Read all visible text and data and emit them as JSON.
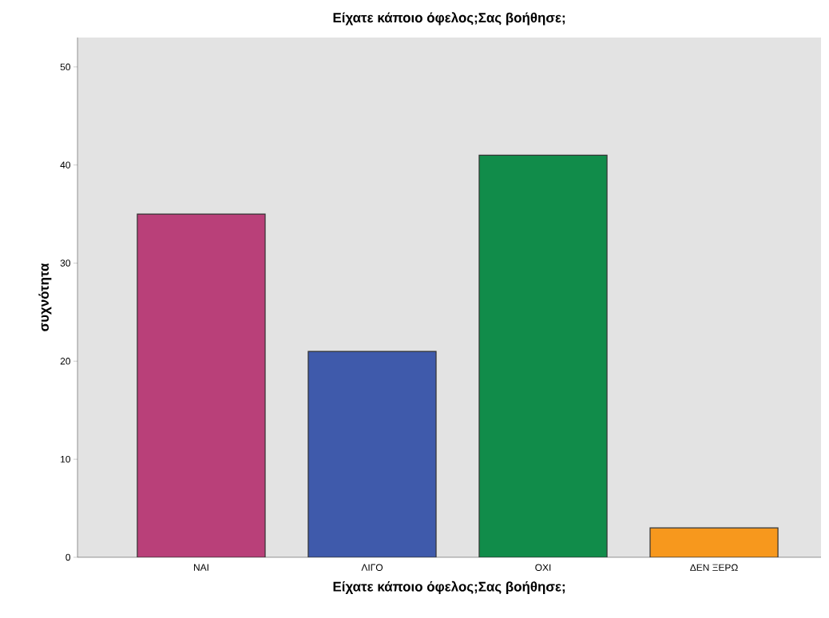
{
  "chart_data": {
    "type": "bar",
    "title": "Είχατε κάποιο όφελος;Σας βοήθησε;",
    "xlabel": "Είχατε κάποιο όφελος;Σας βοήθησε;",
    "ylabel": "συχνότητα",
    "categories": [
      "ΝΑΙ",
      "ΛΙΓΟ",
      "ΟΧΙ",
      "ΔΕΝ ΞΕΡΩ"
    ],
    "values": [
      35,
      21,
      41,
      3
    ],
    "colors": [
      "#b94079",
      "#3f5aab",
      "#118c4a",
      "#f7981d"
    ],
    "ylim": [
      0,
      53
    ],
    "yticks": [
      0,
      10,
      20,
      30,
      40,
      50
    ],
    "grid": false
  }
}
